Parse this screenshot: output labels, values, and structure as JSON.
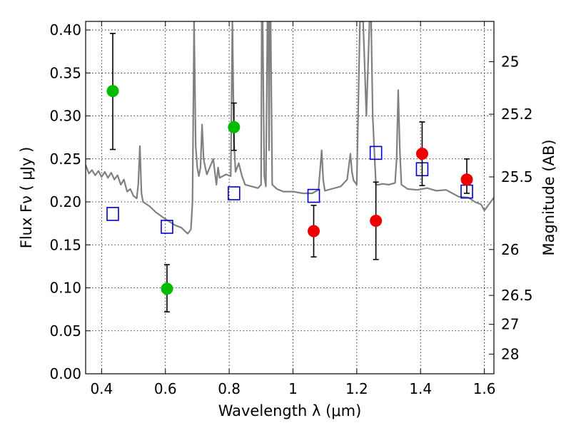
{
  "chart_data": {
    "type": "scatter",
    "title": "",
    "xlabel": "Wavelength  λ (μm)",
    "ylabel": "Flux  Fν  ( μJy )",
    "ylabel_right": "Magnitude (AB)",
    "xlim": [
      0.35,
      1.63
    ],
    "ylim": [
      0.0,
      0.41
    ],
    "grid": true,
    "xticks": [
      {
        "value": 0.4,
        "label": "0.4"
      },
      {
        "value": 0.6,
        "label": "0.6"
      },
      {
        "value": 0.8,
        "label": "0.8"
      },
      {
        "value": 1.0,
        "label": "1"
      },
      {
        "value": 1.2,
        "label": "1.2"
      },
      {
        "value": 1.4,
        "label": "1.4"
      },
      {
        "value": 1.6,
        "label": "1.6"
      }
    ],
    "yticks": [
      {
        "value": 0.0,
        "label": "0.00"
      },
      {
        "value": 0.05,
        "label": "0.05"
      },
      {
        "value": 0.1,
        "label": "0.10"
      },
      {
        "value": 0.15,
        "label": "0.15"
      },
      {
        "value": 0.2,
        "label": "0.20"
      },
      {
        "value": 0.25,
        "label": "0.25"
      },
      {
        "value": 0.3,
        "label": "0.30"
      },
      {
        "value": 0.35,
        "label": "0.35"
      },
      {
        "value": 0.4,
        "label": "0.40"
      }
    ],
    "right_ticks": [
      {
        "magnitude": 25,
        "label": "25"
      },
      {
        "magnitude": 25.2,
        "label": "25.2"
      },
      {
        "magnitude": 25.5,
        "label": "25.5"
      },
      {
        "magnitude": 26,
        "label": "26"
      },
      {
        "magnitude": 26.5,
        "label": "26.5"
      },
      {
        "magnitude": 27,
        "label": "27"
      },
      {
        "magnitude": 28,
        "label": "28"
      }
    ],
    "series": [
      {
        "marker": "circle",
        "color": "#00bb00",
        "x": [
          0.435,
          0.605,
          0.815
        ],
        "y": [
          0.329,
          0.099,
          0.287
        ],
        "err_low": [
          0.261,
          0.072,
          0.26
        ],
        "err_high": [
          0.396,
          0.127,
          0.315
        ]
      },
      {
        "marker": "circle",
        "color": "#ee0000",
        "x": [
          1.065,
          1.26,
          1.405,
          1.545
        ],
        "y": [
          0.166,
          0.178,
          0.256,
          0.226
        ],
        "err_low": [
          0.136,
          0.133,
          0.219,
          0.21
        ],
        "err_high": [
          0.196,
          0.223,
          0.293,
          0.25
        ]
      },
      {
        "marker": "open-square",
        "color": "#0000cc",
        "x": [
          0.435,
          0.605,
          0.815,
          1.065,
          1.26,
          1.405,
          1.545
        ],
        "y": [
          0.186,
          0.171,
          0.21,
          0.207,
          0.257,
          0.238,
          0.212
        ]
      },
      {
        "marker": "line",
        "color": "#808080",
        "x": [
          0.35,
          0.36,
          0.37,
          0.38,
          0.39,
          0.4,
          0.41,
          0.42,
          0.43,
          0.44,
          0.45,
          0.46,
          0.47,
          0.48,
          0.49,
          0.5,
          0.51,
          0.515,
          0.52,
          0.525,
          0.53,
          0.55,
          0.57,
          0.6,
          0.63,
          0.65,
          0.67,
          0.68,
          0.685,
          0.69,
          0.695,
          0.7,
          0.705,
          0.71,
          0.715,
          0.72,
          0.725,
          0.73,
          0.75,
          0.76,
          0.765,
          0.77,
          0.79,
          0.805,
          0.81,
          0.815,
          0.82,
          0.83,
          0.84,
          0.85,
          0.87,
          0.89,
          0.9,
          0.902,
          0.905,
          0.91,
          0.915,
          0.92,
          0.923,
          0.925,
          0.927,
          0.93,
          0.935,
          0.95,
          0.97,
          1.0,
          1.03,
          1.06,
          1.08,
          1.09,
          1.095,
          1.1,
          1.12,
          1.15,
          1.17,
          1.18,
          1.185,
          1.19,
          1.2,
          1.21,
          1.215,
          1.22,
          1.23,
          1.24,
          1.245,
          1.25,
          1.255,
          1.26,
          1.27,
          1.28,
          1.3,
          1.32,
          1.325,
          1.33,
          1.335,
          1.34,
          1.36,
          1.39,
          1.42,
          1.45,
          1.48,
          1.5,
          1.52,
          1.55,
          1.57,
          1.59,
          1.6,
          1.61,
          1.62,
          1.63
        ],
        "y": [
          0.243,
          0.233,
          0.237,
          0.231,
          0.236,
          0.229,
          0.235,
          0.228,
          0.234,
          0.226,
          0.231,
          0.22,
          0.226,
          0.212,
          0.215,
          0.207,
          0.204,
          0.22,
          0.265,
          0.21,
          0.2,
          0.195,
          0.188,
          0.18,
          0.173,
          0.17,
          0.163,
          0.168,
          0.2,
          0.41,
          0.265,
          0.24,
          0.23,
          0.24,
          0.29,
          0.25,
          0.24,
          0.232,
          0.25,
          0.22,
          0.24,
          0.228,
          0.232,
          0.23,
          0.41,
          0.27,
          0.235,
          0.245,
          0.23,
          0.22,
          0.218,
          0.216,
          0.22,
          0.41,
          0.41,
          0.23,
          0.218,
          0.41,
          0.41,
          0.26,
          0.41,
          0.41,
          0.22,
          0.215,
          0.212,
          0.212,
          0.21,
          0.21,
          0.214,
          0.26,
          0.225,
          0.213,
          0.215,
          0.218,
          0.226,
          0.256,
          0.235,
          0.225,
          0.22,
          0.41,
          0.41,
          0.41,
          0.3,
          0.41,
          0.41,
          0.3,
          0.26,
          0.22,
          0.22,
          0.221,
          0.22,
          0.222,
          0.25,
          0.33,
          0.26,
          0.22,
          0.215,
          0.214,
          0.216,
          0.213,
          0.214,
          0.21,
          0.206,
          0.205,
          0.2,
          0.197,
          0.19,
          0.195,
          0.2,
          0.205
        ]
      }
    ]
  }
}
